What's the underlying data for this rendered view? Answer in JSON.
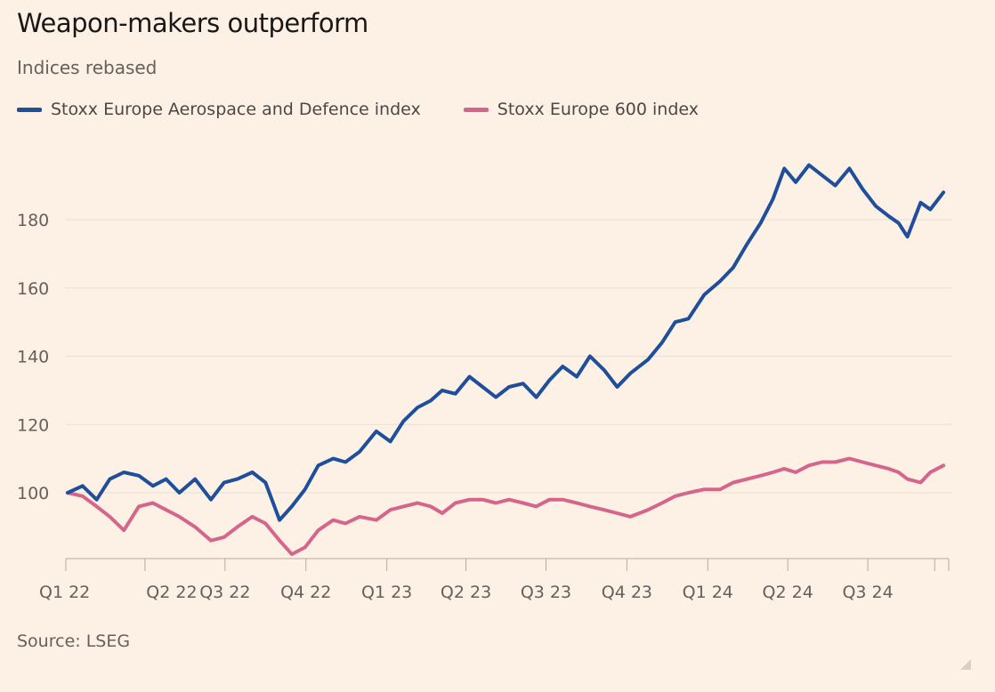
{
  "header": {
    "title": "Weapon-makers outperform",
    "subtitle": "Indices rebased"
  },
  "footer": {
    "source": "Source: LSEG"
  },
  "colors": {
    "defence": "#1f4e9b",
    "stoxx600": "#d6658b",
    "background": "#fdf1e6",
    "grid": "#ebdfd4"
  },
  "chart_data": {
    "type": "line",
    "title": "Weapon-makers outperform",
    "subtitle": "Indices rebased",
    "xlabel": "",
    "ylabel": "",
    "ylim": [
      80,
      198
    ],
    "yticks": [
      100,
      120,
      140,
      160,
      180
    ],
    "grid": true,
    "legend_position": "top-left",
    "x_tick_labels": [
      "Q1 22",
      "Q2 22",
      "Q3 22",
      "Q4 22",
      "Q1 23",
      "Q2 23",
      "Q3 23",
      "Q4 23",
      "Q1 24",
      "Q2 24",
      "Q3 24"
    ],
    "x": [
      "2022-01-03",
      "2022-01-20",
      "2022-02-05",
      "2022-02-20",
      "2022-03-08",
      "2022-03-25",
      "2022-04-10",
      "2022-04-25",
      "2022-05-10",
      "2022-05-28",
      "2022-06-15",
      "2022-06-30",
      "2022-07-15",
      "2022-08-01",
      "2022-08-16",
      "2022-09-01",
      "2022-09-15",
      "2022-09-30",
      "2022-10-15",
      "2022-11-01",
      "2022-11-15",
      "2022-12-01",
      "2022-12-20",
      "2023-01-05",
      "2023-01-20",
      "2023-02-05",
      "2023-02-20",
      "2023-03-05",
      "2023-03-20",
      "2023-04-05",
      "2023-04-20",
      "2023-05-05",
      "2023-05-20",
      "2023-06-05",
      "2023-06-20",
      "2023-07-05",
      "2023-07-20",
      "2023-08-05",
      "2023-08-20",
      "2023-09-05",
      "2023-09-20",
      "2023-10-05",
      "2023-10-25",
      "2023-11-10",
      "2023-11-25",
      "2023-12-10",
      "2023-12-28",
      "2024-01-15",
      "2024-01-30",
      "2024-02-15",
      "2024-03-01",
      "2024-03-15",
      "2024-03-28",
      "2024-04-10",
      "2024-04-25",
      "2024-05-10",
      "2024-05-25",
      "2024-06-10",
      "2024-06-25",
      "2024-07-10",
      "2024-07-25",
      "2024-08-05",
      "2024-08-15",
      "2024-08-30",
      "2024-09-10",
      "2024-09-25"
    ],
    "series": [
      {
        "name": "Stoxx Europe Aerospace and Defence index",
        "color": "#1f4e9b",
        "values": [
          100,
          102,
          98,
          104,
          106,
          105,
          102,
          104,
          100,
          104,
          98,
          103,
          104,
          106,
          103,
          92,
          96,
          101,
          108,
          110,
          109,
          112,
          118,
          115,
          121,
          125,
          127,
          130,
          129,
          134,
          131,
          128,
          131,
          132,
          128,
          133,
          137,
          134,
          140,
          136,
          131,
          135,
          139,
          144,
          150,
          151,
          158,
          162,
          166,
          173,
          179,
          186,
          195,
          191,
          196,
          193,
          190,
          195,
          189,
          184,
          181,
          179,
          175,
          185,
          183,
          188
        ],
        "marker": "none"
      },
      {
        "name": "Stoxx Europe 600 index",
        "color": "#d6658b",
        "values": [
          100,
          99,
          96,
          93,
          89,
          96,
          97,
          95,
          93,
          90,
          86,
          87,
          90,
          93,
          91,
          86,
          82,
          84,
          89,
          92,
          91,
          93,
          92,
          95,
          96,
          97,
          96,
          94,
          97,
          98,
          98,
          97,
          98,
          97,
          96,
          98,
          98,
          97,
          96,
          95,
          94,
          93,
          95,
          97,
          99,
          100,
          101,
          101,
          103,
          104,
          105,
          106,
          107,
          106,
          108,
          109,
          109,
          110,
          109,
          108,
          107,
          106,
          104,
          103,
          106,
          108
        ],
        "marker": "none"
      }
    ]
  }
}
